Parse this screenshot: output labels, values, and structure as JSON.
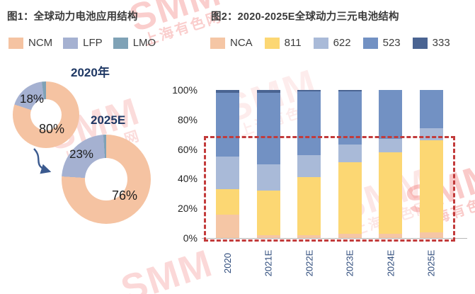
{
  "fig1": {
    "title": "图1：全球动力电池应用结构",
    "legend": [
      {
        "label": "NCM",
        "color": "#F5C3A2"
      },
      {
        "label": "LFP",
        "color": "#A5B1D1"
      },
      {
        "label": "LMO",
        "color": "#7FA2B6"
      }
    ]
  },
  "fig2": {
    "title": "图2：2020-2025E全球动力三元电池结构",
    "legend": [
      {
        "label": "NCA",
        "color": "#F5C6A5"
      },
      {
        "label": "811",
        "color": "#FCD773"
      },
      {
        "label": "622",
        "color": "#A9BAD8"
      },
      {
        "label": "523",
        "color": "#7291C3"
      },
      {
        "label": "333",
        "color": "#4A6492"
      }
    ],
    "dashed_box_color": "#C23B3B"
  },
  "chart_data": [
    {
      "type": "pie",
      "title": "2020年",
      "labels": [
        "NCM",
        "LFP",
        "LMO"
      ],
      "values": [
        80,
        18,
        2
      ],
      "slice_labels": {
        "NCM": "80%",
        "LFP": "18%"
      },
      "legend_position": "top"
    },
    {
      "type": "pie",
      "title": "2025E",
      "labels": [
        "NCM",
        "LFP",
        "LMO"
      ],
      "values": [
        76,
        23,
        1
      ],
      "slice_labels": {
        "NCM": "76%",
        "LFP": "23%"
      },
      "legend_position": "top"
    },
    {
      "type": "bar",
      "stacked": true,
      "title": "2020-2025E全球动力三元电池结构",
      "categories": [
        "2020",
        "2021E",
        "2022E",
        "2023E",
        "2024E",
        "2025E"
      ],
      "series": [
        {
          "name": "NCA",
          "values": [
            16,
            2,
            2,
            3,
            3,
            4
          ]
        },
        {
          "name": "811",
          "values": [
            17,
            30,
            39,
            48,
            55,
            62
          ]
        },
        {
          "name": "622",
          "values": [
            22,
            18,
            15,
            12,
            9,
            8
          ]
        },
        {
          "name": "523",
          "values": [
            43,
            48,
            43,
            36,
            33,
            26
          ]
        },
        {
          "name": "333",
          "values": [
            2,
            2,
            1,
            1,
            0,
            0
          ]
        }
      ],
      "xlabel": "",
      "ylabel": "",
      "ylim": [
        0,
        100
      ],
      "yticks": [
        "0%",
        "20%",
        "40%",
        "60%",
        "80%",
        "100%"
      ],
      "grid": false,
      "annotation": "red dashed box highlighting 0%–68% range across all bars (NCA + 811 growth)"
    }
  ],
  "watermark": {
    "brand": "SMM",
    "site": "上海有色网"
  }
}
